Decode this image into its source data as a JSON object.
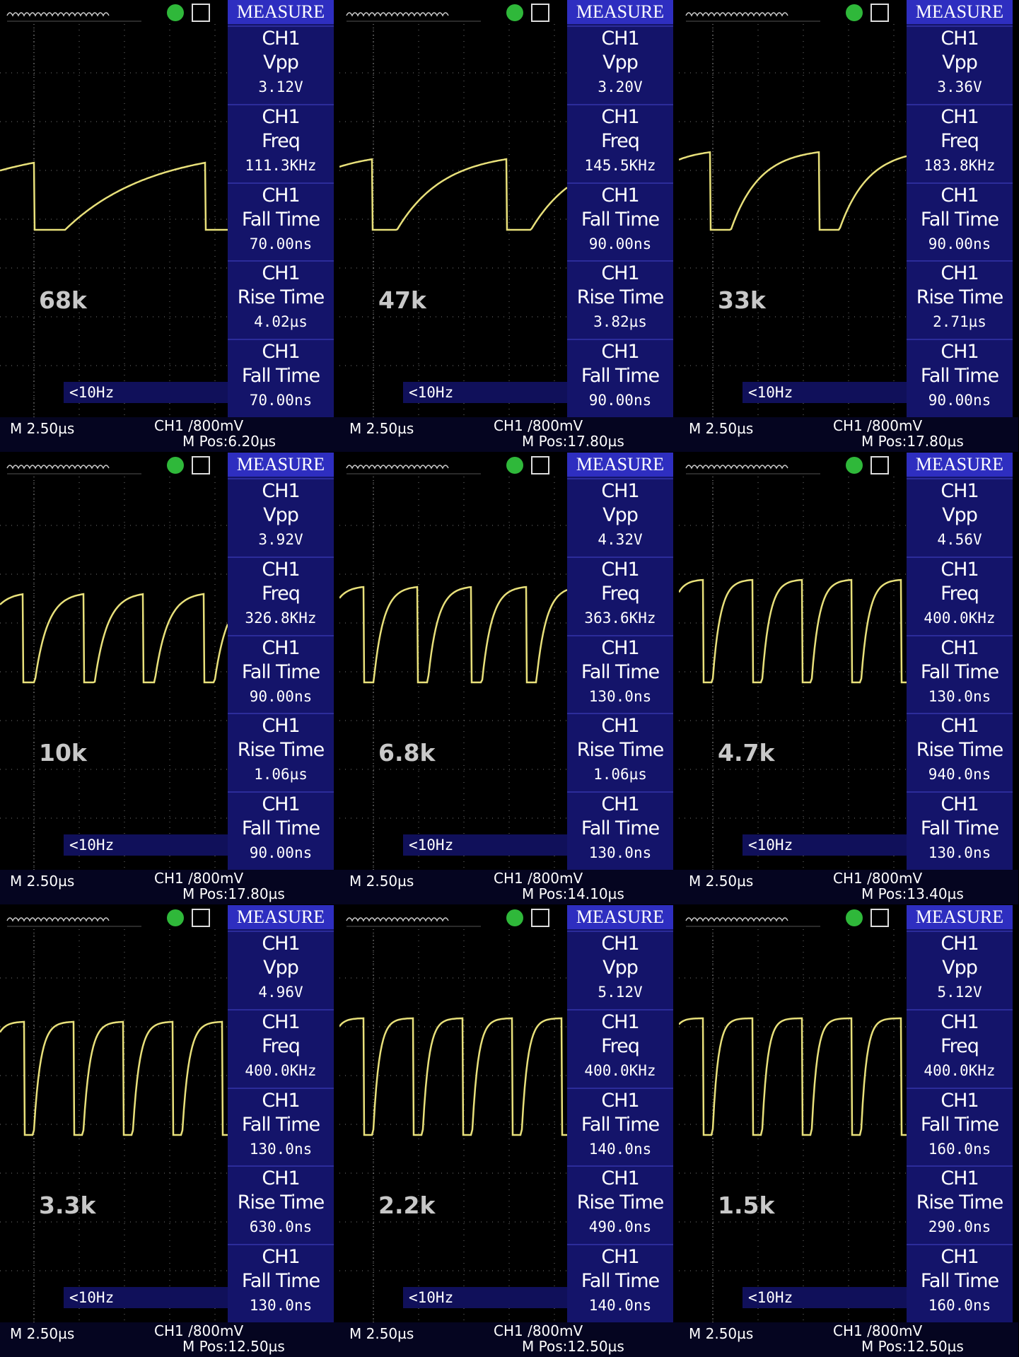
{
  "panels": [
    {
      "menu": "MEASURE",
      "label": "68k",
      "trigger": "<10Hz",
      "timebase": "M 2.50µs",
      "channel": "CH1 /800mV",
      "position": "M Pos:6.20µs",
      "measurements": [
        {
          "source": "CH1",
          "name": "Vpp",
          "value": "3.12V"
        },
        {
          "source": "CH1",
          "name": "Freq",
          "value": "111.3KHz"
        },
        {
          "source": "CH1",
          "name": "Fall Time",
          "value": "70.00ns"
        },
        {
          "source": "CH1",
          "name": "Rise Time",
          "value": "4.02µs"
        },
        {
          "source": "CH1",
          "name": "Fall Time",
          "value": "70.00ns"
        }
      ]
    },
    {
      "menu": "MEASURE",
      "label": "47k",
      "trigger": "<10Hz",
      "timebase": "M 2.50µs",
      "channel": "CH1 /800mV",
      "position": "M Pos:17.80µs",
      "measurements": [
        {
          "source": "CH1",
          "name": "Vpp",
          "value": "3.20V"
        },
        {
          "source": "CH1",
          "name": "Freq",
          "value": "145.5KHz"
        },
        {
          "source": "CH1",
          "name": "Fall Time",
          "value": "90.00ns"
        },
        {
          "source": "CH1",
          "name": "Rise Time",
          "value": "3.82µs"
        },
        {
          "source": "CH1",
          "name": "Fall Time",
          "value": "90.00ns"
        }
      ]
    },
    {
      "menu": "MEASURE",
      "label": "33k",
      "trigger": "<10Hz",
      "timebase": "M 2.50µs",
      "channel": "CH1 /800mV",
      "position": "M Pos:17.80µs",
      "measurements": [
        {
          "source": "CH1",
          "name": "Vpp",
          "value": "3.36V"
        },
        {
          "source": "CH1",
          "name": "Freq",
          "value": "183.8KHz"
        },
        {
          "source": "CH1",
          "name": "Fall Time",
          "value": "90.00ns"
        },
        {
          "source": "CH1",
          "name": "Rise Time",
          "value": "2.71µs"
        },
        {
          "source": "CH1",
          "name": "Fall Time",
          "value": "90.00ns"
        }
      ]
    },
    {
      "menu": "MEASURE",
      "label": "10k",
      "trigger": "<10Hz",
      "timebase": "M 2.50µs",
      "channel": "CH1 /800mV",
      "position": "M Pos:17.80µs",
      "measurements": [
        {
          "source": "CH1",
          "name": "Vpp",
          "value": "3.92V"
        },
        {
          "source": "CH1",
          "name": "Freq",
          "value": "326.8KHz"
        },
        {
          "source": "CH1",
          "name": "Fall Time",
          "value": "90.00ns"
        },
        {
          "source": "CH1",
          "name": "Rise Time",
          "value": "1.06µs"
        },
        {
          "source": "CH1",
          "name": "Fall Time",
          "value": "90.00ns"
        }
      ]
    },
    {
      "menu": "MEASURE",
      "label": "6.8k",
      "trigger": "<10Hz",
      "timebase": "M 2.50µs",
      "channel": "CH1 /800mV",
      "position": "M Pos:14.10µs",
      "measurements": [
        {
          "source": "CH1",
          "name": "Vpp",
          "value": "4.32V"
        },
        {
          "source": "CH1",
          "name": "Freq",
          "value": "363.6KHz"
        },
        {
          "source": "CH1",
          "name": "Fall Time",
          "value": "130.0ns"
        },
        {
          "source": "CH1",
          "name": "Rise Time",
          "value": "1.06µs"
        },
        {
          "source": "CH1",
          "name": "Fall Time",
          "value": "130.0ns"
        }
      ]
    },
    {
      "menu": "MEASURE",
      "label": "4.7k",
      "trigger": "<10Hz",
      "timebase": "M 2.50µs",
      "channel": "CH1 /800mV",
      "position": "M Pos:13.40µs",
      "measurements": [
        {
          "source": "CH1",
          "name": "Vpp",
          "value": "4.56V"
        },
        {
          "source": "CH1",
          "name": "Freq",
          "value": "400.0KHz"
        },
        {
          "source": "CH1",
          "name": "Fall Time",
          "value": "130.0ns"
        },
        {
          "source": "CH1",
          "name": "Rise Time",
          "value": "940.0ns"
        },
        {
          "source": "CH1",
          "name": "Fall Time",
          "value": "130.0ns"
        }
      ]
    },
    {
      "menu": "MEASURE",
      "label": "3.3k",
      "trigger": "<10Hz",
      "timebase": "M 2.50µs",
      "channel": "CH1 /800mV",
      "position": "M Pos:12.50µs",
      "measurements": [
        {
          "source": "CH1",
          "name": "Vpp",
          "value": "4.96V"
        },
        {
          "source": "CH1",
          "name": "Freq",
          "value": "400.0KHz"
        },
        {
          "source": "CH1",
          "name": "Fall Time",
          "value": "130.0ns"
        },
        {
          "source": "CH1",
          "name": "Rise Time",
          "value": "630.0ns"
        },
        {
          "source": "CH1",
          "name": "Fall Time",
          "value": "130.0ns"
        }
      ]
    },
    {
      "menu": "MEASURE",
      "label": "2.2k",
      "trigger": "<10Hz",
      "timebase": "M 2.50µs",
      "channel": "CH1 /800mV",
      "position": "M Pos:12.50µs",
      "measurements": [
        {
          "source": "CH1",
          "name": "Vpp",
          "value": "5.12V"
        },
        {
          "source": "CH1",
          "name": "Freq",
          "value": "400.0KHz"
        },
        {
          "source": "CH1",
          "name": "Fall Time",
          "value": "140.0ns"
        },
        {
          "source": "CH1",
          "name": "Rise Time",
          "value": "490.0ns"
        },
        {
          "source": "CH1",
          "name": "Fall Time",
          "value": "140.0ns"
        }
      ]
    },
    {
      "menu": "MEASURE",
      "label": "1.5k",
      "trigger": "<10Hz",
      "timebase": "M 2.50µs",
      "channel": "CH1 /800mV",
      "position": "M Pos:12.50µs",
      "measurements": [
        {
          "source": "CH1",
          "name": "Vpp",
          "value": "5.12V"
        },
        {
          "source": "CH1",
          "name": "Freq",
          "value": "400.0KHz"
        },
        {
          "source": "CH1",
          "name": "Fall Time",
          "value": "160.0ns"
        },
        {
          "source": "CH1",
          "name": "Rise Time",
          "value": "290.0ns"
        },
        {
          "source": "CH1",
          "name": "Fall Time",
          "value": "160.0ns"
        }
      ]
    }
  ]
}
